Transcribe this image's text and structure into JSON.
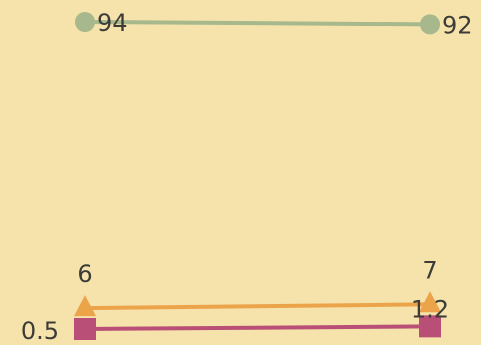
{
  "colors": {
    "background": "#f5e3ab",
    "label": "#3d3b38"
  },
  "chart_data": {
    "type": "line",
    "title": "",
    "xlabel": "",
    "ylabel": "",
    "grid": false,
    "legend": "none",
    "x": [
      "",
      ""
    ],
    "series": [
      {
        "marker": "circle",
        "color": "#a6b88c",
        "values": [
          94,
          92
        ],
        "labels": [
          "94",
          "92"
        ],
        "label_position": "right"
      },
      {
        "marker": "triangle",
        "color": "#eca44a",
        "values": [
          6,
          7
        ],
        "labels": [
          "6",
          "7"
        ],
        "label_position": "above"
      },
      {
        "marker": "square",
        "color": "#b94f76",
        "values": [
          0.5,
          1.2
        ],
        "labels": [
          "0.5",
          "1.2"
        ],
        "label_position": "left-then-above"
      }
    ]
  }
}
